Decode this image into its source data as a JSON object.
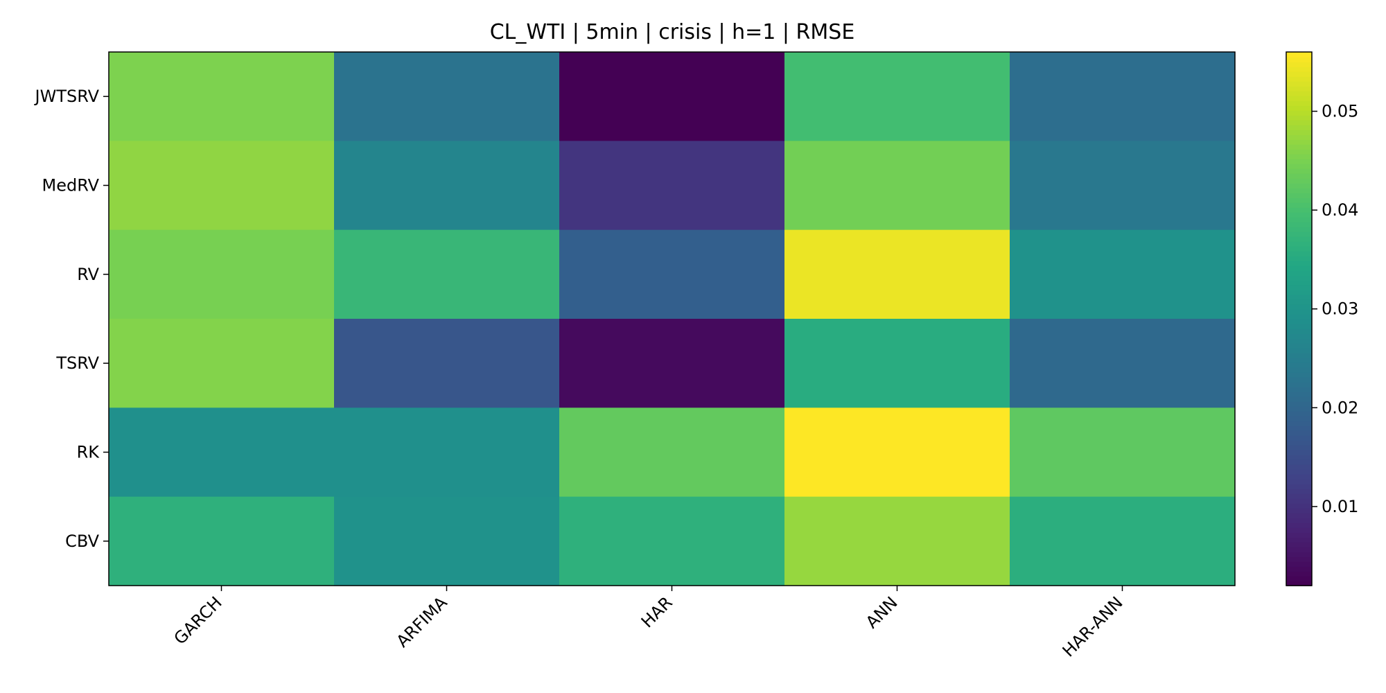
{
  "chart_data": {
    "type": "heatmap",
    "title": "CL_WTI | 5min | crisis | h=1 | RMSE",
    "xlabel": "",
    "ylabel": "",
    "x_categories": [
      "GARCH",
      "ARFIMA",
      "HAR",
      "ANN",
      "HAR-ANN"
    ],
    "y_categories": [
      "JWTSRV",
      "MedRV",
      "RV",
      "TSRV",
      "RK",
      "CBV"
    ],
    "values": [
      [
        0.0455,
        0.0225,
        0.002,
        0.0395,
        0.0215
      ],
      [
        0.047,
        0.0265,
        0.0105,
        0.0445,
        0.0235
      ],
      [
        0.045,
        0.038,
        0.0185,
        0.0545,
        0.0295
      ],
      [
        0.046,
        0.0165,
        0.0035,
        0.0355,
        0.0205
      ],
      [
        0.029,
        0.029,
        0.043,
        0.056,
        0.0425
      ],
      [
        0.0365,
        0.0295,
        0.0365,
        0.0475,
        0.036
      ]
    ],
    "colormap": "viridis",
    "vmin": 0.002,
    "vmax": 0.056,
    "colorbar_ticks": [
      {
        "value": 0.01,
        "label": "0.01"
      },
      {
        "value": 0.02,
        "label": "0.02"
      },
      {
        "value": 0.03,
        "label": "0.03"
      },
      {
        "value": 0.04,
        "label": "0.04"
      },
      {
        "value": 0.05,
        "label": "0.05"
      }
    ],
    "grid": false,
    "legend": "colorbar-right"
  }
}
